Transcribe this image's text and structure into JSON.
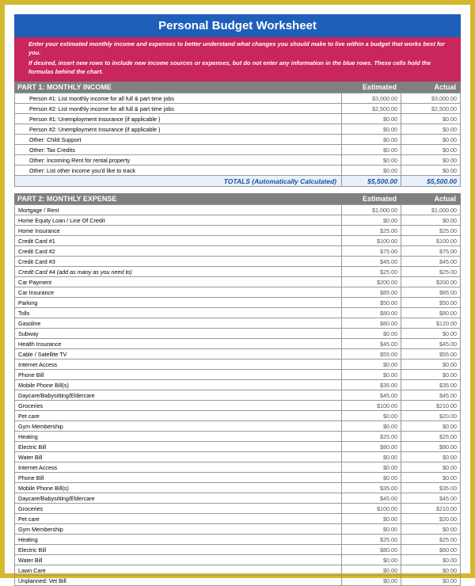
{
  "title": "Personal Budget Worksheet",
  "instructions": [
    "Enter your estimated monthly income and expenses to better understand what changes you should make to live within a budget that works best for you.",
    "If desired, insert new rows to include new income sources or expenses, but do not enter any information in the blue rows. These cells hold the formulas behind the chart."
  ],
  "colors": {
    "frame": "#d4b82e",
    "title_bg": "#1e5fb9",
    "instructions_bg": "#c9265c",
    "section_bg": "#808080",
    "totals_bg": "#e8f0fa",
    "totals_text": "#1e4fa0"
  },
  "columns": {
    "estimated": "Estimated",
    "actual": "Actual"
  },
  "income": {
    "header": "PART 1: MONTHLY INCOME",
    "rows": [
      {
        "label": "Person #1: List monthly income for all full & part time jobs",
        "est": "$3,000.00",
        "act": "$3,000.00",
        "sub": true
      },
      {
        "label": "Person #2: List monthly income for all full & part time jobs",
        "est": "$2,500.00",
        "act": "$2,500.00",
        "sub": true
      },
      {
        "label": "Person #1: Unemployment Insurance (if applicable )",
        "est": "$0.00",
        "act": "$0.00",
        "sub": true
      },
      {
        "label": "Person #2: Unemployment Insurance (if applicable )",
        "est": "$0.00",
        "act": "$0.00",
        "sub": true
      },
      {
        "label": "Other: Child Support",
        "est": "$0.00",
        "act": "$0.00",
        "sub": true
      },
      {
        "label": "Other: Tax Credits",
        "est": "$0.00",
        "act": "$0.00",
        "sub": true
      },
      {
        "label": "Other: Incoming Rent for rental property",
        "est": "$0.00",
        "act": "$0.00",
        "sub": true
      },
      {
        "label": "Other: List other income you'd like to track",
        "est": "$0.00",
        "act": "$0.00",
        "sub": true
      }
    ],
    "totals_label": "TOTALS (Automatically Calculated)",
    "totals_est": "$5,500.00",
    "totals_act": "$5,500.00"
  },
  "expense": {
    "header": "PART 2: MONTHLY EXPENSE",
    "rows": [
      {
        "label": "Mortgage / Rent",
        "est": "$1,000.00",
        "act": "$1,000.00"
      },
      {
        "label": "Home Equity Loan / Line Of Credit",
        "est": "$0.00",
        "act": "$0.00"
      },
      {
        "label": "Home Insurance",
        "est": "$25.00",
        "act": "$25.00"
      },
      {
        "label": "Credit Card #1",
        "est": "$100.00",
        "act": "$100.00"
      },
      {
        "label": "Credit Card #2",
        "est": "$75.00",
        "act": "$75.00"
      },
      {
        "label": "Credit Card #3",
        "est": "$45.00",
        "act": "$45.00"
      },
      {
        "label": "Credit Card #4 (add as many as you need to)",
        "est": "$25.00",
        "act": "$25.00",
        "italic": true
      },
      {
        "label": "Car Payment",
        "est": "$200.00",
        "act": "$200.00"
      },
      {
        "label": "Car Insurance",
        "est": "$85.00",
        "act": "$85.00"
      },
      {
        "label": "Parking",
        "est": "$50.00",
        "act": "$50.00"
      },
      {
        "label": "Tolls",
        "est": "$80.00",
        "act": "$80.00"
      },
      {
        "label": "Gasoline",
        "est": "$80.00",
        "act": "$120.00"
      },
      {
        "label": "Subway",
        "est": "$0.00",
        "act": "$0.00"
      },
      {
        "label": "Health Insurance",
        "est": "$45.00",
        "act": "$45.00"
      },
      {
        "label": "Cable / Satellite TV",
        "est": "$55.00",
        "act": "$55.00"
      },
      {
        "label": "Internet Access",
        "est": "$0.00",
        "act": "$0.00"
      },
      {
        "label": "Phone Bill",
        "est": "$0.00",
        "act": "$0.00"
      },
      {
        "label": "Mobile Phone Bill(s)",
        "est": "$35.00",
        "act": "$35.00"
      },
      {
        "label": "Daycare/Babysitting/Eldercare",
        "est": "$45.00",
        "act": "$45.00"
      },
      {
        "label": "Groceries",
        "est": "$100.00",
        "act": "$210.00"
      },
      {
        "label": "Pet care",
        "est": "$0.00",
        "act": "$20.00"
      },
      {
        "label": "Gym Membership",
        "est": "$0.00",
        "act": "$0.00"
      },
      {
        "label": "Heating",
        "est": "$25.00",
        "act": "$25.00"
      },
      {
        "label": "Electric Bill",
        "est": "$80.00",
        "act": "$80.00"
      },
      {
        "label": "Water Bill",
        "est": "$0.00",
        "act": "$0.00"
      },
      {
        "label": "Internet Access",
        "est": "$0.00",
        "act": "$0.00"
      },
      {
        "label": "Phone Bill",
        "est": "$0.00",
        "act": "$0.00"
      },
      {
        "label": "Mobile Phone Bill(s)",
        "est": "$35.00",
        "act": "$35.00"
      },
      {
        "label": "Daycare/Babysitting/Eldercare",
        "est": "$45.00",
        "act": "$45.00"
      },
      {
        "label": "Groceries",
        "est": "$100.00",
        "act": "$210.00"
      },
      {
        "label": "Pet care",
        "est": "$0.00",
        "act": "$20.00"
      },
      {
        "label": "Gym Membership",
        "est": "$0.00",
        "act": "$0.00"
      },
      {
        "label": "Heating",
        "est": "$25.00",
        "act": "$25.00"
      },
      {
        "label": "Electric Bill",
        "est": "$80.00",
        "act": "$80.00"
      },
      {
        "label": "Water Bill",
        "est": "$0.00",
        "act": "$0.00"
      },
      {
        "label": "Lawn Care",
        "est": "$0.00",
        "act": "$0.00"
      },
      {
        "label": "Unplanned: Vet Bill",
        "est": "$0.00",
        "act": "$0.00"
      }
    ]
  }
}
